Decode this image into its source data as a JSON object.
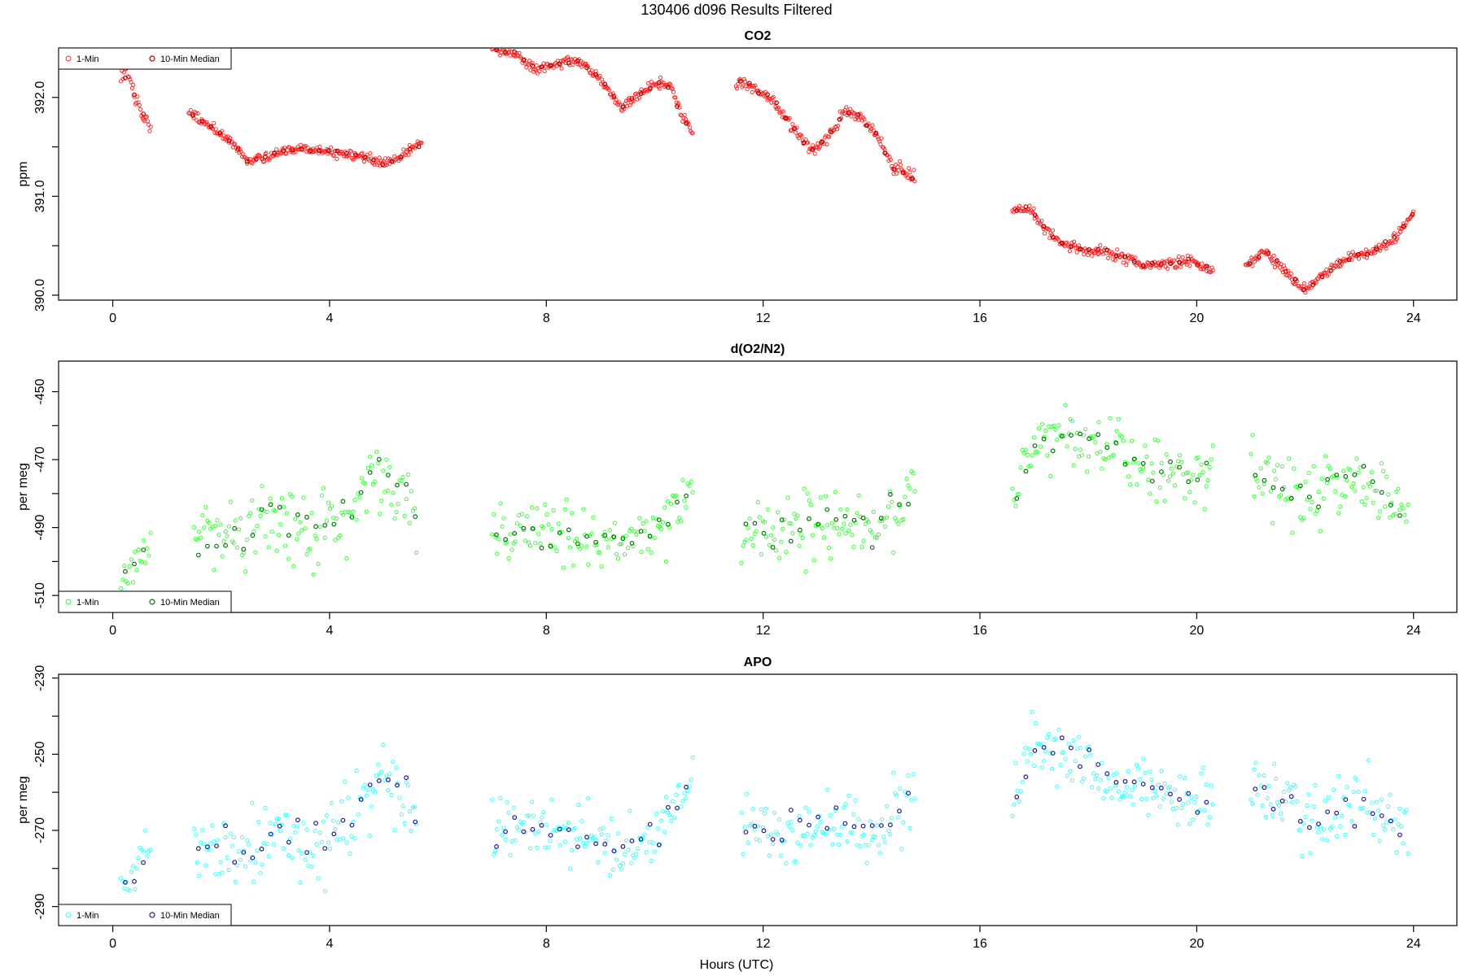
{
  "figure": {
    "title": "130406   d096   Results Filtered",
    "xlabel": "Hours (UTC)"
  },
  "legend": {
    "one_min": "1-Min",
    "ten_min": "10-Min Median"
  },
  "chart_data": [
    {
      "type": "scatter",
      "title": "CO2",
      "ylabel": "ppm",
      "xlim": [
        -1,
        24.8
      ],
      "ylim": [
        389.95,
        392.5
      ],
      "xticks": [
        0,
        4,
        8,
        12,
        16,
        20,
        24
      ],
      "yticks": [
        390.0,
        390.5,
        391.0,
        391.5,
        392.0
      ],
      "ytick_labels": [
        "390.0",
        "",
        "391.0",
        "",
        "392.0"
      ],
      "colors": {
        "one_min": "#ff2a2a",
        "ten_min": "#b00000"
      },
      "legend_position": "top-left",
      "segments": [
        {
          "x": [
            0.15,
            0.25,
            0.35,
            0.45,
            0.55,
            0.7
          ],
          "y": [
            392.15,
            392.28,
            392.1,
            391.95,
            391.85,
            391.7
          ],
          "scatter": 0.09
        },
        {
          "x": [
            1.4,
            1.8,
            2.2,
            2.5,
            3.0,
            3.5,
            4.0,
            4.6,
            5.0,
            5.3,
            5.7
          ],
          "y": [
            391.85,
            391.7,
            391.55,
            391.35,
            391.45,
            391.48,
            391.45,
            391.4,
            391.33,
            391.4,
            391.55
          ],
          "scatter": 0.05
        },
        {
          "x": [
            7.0,
            7.4,
            7.8,
            8.2,
            8.6,
            9.0,
            9.4,
            9.7,
            10.0,
            10.3,
            10.5,
            10.7
          ],
          "y": [
            392.5,
            392.45,
            392.28,
            392.35,
            392.38,
            392.18,
            391.9,
            392.02,
            392.15,
            392.12,
            391.8,
            391.65
          ],
          "scatter": 0.05
        },
        {
          "x": [
            11.5,
            11.8,
            12.2,
            12.6,
            12.9,
            13.2,
            13.5,
            13.8,
            14.1,
            14.4,
            14.8
          ],
          "y": [
            392.15,
            392.12,
            391.95,
            391.65,
            391.45,
            391.6,
            391.85,
            391.8,
            391.6,
            391.3,
            391.18
          ],
          "scatter": 0.06
        },
        {
          "x": [
            16.6,
            16.9,
            17.2,
            17.5,
            18.0,
            18.5,
            19.0,
            19.4,
            19.8,
            20.3
          ],
          "y": [
            390.85,
            390.9,
            390.68,
            390.52,
            390.45,
            390.42,
            390.3,
            390.32,
            390.35,
            390.25
          ],
          "scatter": 0.05
        },
        {
          "x": [
            20.9,
            21.2,
            21.4,
            21.7,
            22.0,
            22.3,
            22.7,
            23.0,
            23.4,
            23.7,
            24.0
          ],
          "y": [
            390.3,
            390.42,
            390.38,
            390.2,
            390.05,
            390.2,
            390.35,
            390.4,
            390.48,
            390.6,
            390.85
          ],
          "scatter": 0.05
        }
      ]
    },
    {
      "type": "scatter",
      "title": "d(O2/N2)",
      "ylabel": "per meg",
      "xlim": [
        -1,
        24.8
      ],
      "ylim": [
        -515,
        -441
      ],
      "xticks": [
        0,
        4,
        8,
        12,
        16,
        20,
        24
      ],
      "yticks": [
        -510,
        -500,
        -490,
        -480,
        -470,
        -460,
        -450
      ],
      "ytick_labels": [
        "-510",
        "",
        "-490",
        "",
        "-470",
        "",
        "-450"
      ],
      "colors": {
        "one_min": "#33ff33",
        "ten_min": "#007700"
      },
      "legend_position": "bottom-left",
      "segments": [
        {
          "x": [
            0.15,
            0.35,
            0.55,
            0.7
          ],
          "y": [
            -506,
            -502,
            -497,
            -494
          ],
          "scatter": 5
        },
        {
          "x": [
            1.5,
            2.0,
            2.5,
            3.0,
            3.5,
            4.0,
            4.5,
            5.0,
            5.6
          ],
          "y": [
            -494,
            -490,
            -492,
            -485,
            -492,
            -488,
            -482,
            -474,
            -484
          ],
          "scatter": 11
        },
        {
          "x": [
            7.0,
            7.6,
            8.2,
            8.8,
            9.4,
            10.0,
            10.4,
            10.7
          ],
          "y": [
            -490,
            -490,
            -492,
            -494,
            -495,
            -492,
            -484,
            -475
          ],
          "scatter": 9
        },
        {
          "x": [
            11.6,
            12.2,
            12.8,
            13.4,
            14.0,
            14.5,
            14.8
          ],
          "y": [
            -492,
            -490,
            -490,
            -488,
            -492,
            -484,
            -479
          ],
          "scatter": 10
        },
        {
          "x": [
            16.6,
            17.0,
            17.5,
            18.0,
            18.5,
            19.0,
            19.5,
            20.0,
            20.3
          ],
          "y": [
            -482,
            -466,
            -463,
            -464,
            -468,
            -471,
            -474,
            -475,
            -472
          ],
          "scatter": 9
        },
        {
          "x": [
            21.0,
            21.5,
            22.0,
            22.5,
            23.0,
            23.5,
            23.9
          ],
          "y": [
            -472,
            -476,
            -481,
            -478,
            -474,
            -482,
            -486
          ],
          "scatter": 10
        }
      ]
    },
    {
      "type": "scatter",
      "title": "APO",
      "ylabel": "per meg",
      "xlim": [
        -1,
        24.8
      ],
      "ylim": [
        -295,
        -229
      ],
      "xticks": [
        0,
        4,
        8,
        12,
        16,
        20,
        24
      ],
      "yticks": [
        -290,
        -280,
        -270,
        -260,
        -250,
        -240,
        -230
      ],
      "ytick_labels": [
        "-290",
        "",
        "-270",
        "",
        "-250",
        "",
        "-230"
      ],
      "colors": {
        "one_min": "#33ffff",
        "ten_min": "#1a1a99"
      },
      "legend_position": "bottom-left",
      "segments": [
        {
          "x": [
            0.15,
            0.35,
            0.55,
            0.7
          ],
          "y": [
            -285,
            -282,
            -278,
            -274
          ],
          "scatter": 5
        },
        {
          "x": [
            1.5,
            2.0,
            2.5,
            3.0,
            3.5,
            4.0,
            4.5,
            5.0,
            5.6
          ],
          "y": [
            -276,
            -273,
            -275,
            -268,
            -274,
            -271,
            -265,
            -257,
            -263
          ],
          "scatter": 10
        },
        {
          "x": [
            7.0,
            7.6,
            8.2,
            8.8,
            9.4,
            10.0,
            10.4,
            10.7
          ],
          "y": [
            -270,
            -269,
            -270,
            -272,
            -275,
            -272,
            -262,
            -255
          ],
          "scatter": 8
        },
        {
          "x": [
            11.6,
            12.2,
            12.8,
            13.4,
            14.0,
            14.5,
            14.8
          ],
          "y": [
            -271,
            -270,
            -270,
            -268,
            -272,
            -265,
            -258
          ],
          "scatter": 9
        },
        {
          "x": [
            16.6,
            17.0,
            17.5,
            18.0,
            18.5,
            19.0,
            19.5,
            20.0,
            20.3
          ],
          "y": [
            -262,
            -247,
            -249,
            -252,
            -257,
            -260,
            -262,
            -263,
            -260
          ],
          "scatter": 8
        },
        {
          "x": [
            21.0,
            21.5,
            22.0,
            22.5,
            23.0,
            23.5,
            23.9
          ],
          "y": [
            -260,
            -263,
            -267,
            -266,
            -262,
            -268,
            -271
          ],
          "scatter": 9
        }
      ]
    }
  ]
}
